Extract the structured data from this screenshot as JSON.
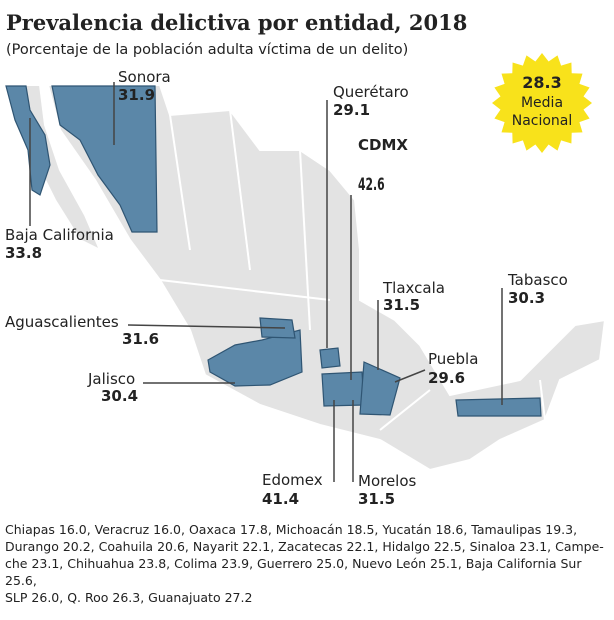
{
  "header": {
    "title": "Prevalencia delictiva por entidad, 2018",
    "subtitle": "(Porcentaje de la población adulta víctima de un delito)"
  },
  "national": {
    "value": 28.3,
    "label_1": "Media",
    "label_2": "Nacional"
  },
  "callouts": [
    {
      "name": "Sonora",
      "value": 31.9
    },
    {
      "name": "Querétaro",
      "value": 29.1
    },
    {
      "name": "CDMX",
      "value": 42.6
    },
    {
      "name": "Baja California",
      "value": 33.8
    },
    {
      "name": "Tlaxcala",
      "value": 31.5
    },
    {
      "name": "Tabasco",
      "value": 30.3
    },
    {
      "name": "Aguascalientes",
      "value": 31.6
    },
    {
      "name": "Jalisco",
      "value": 30.4
    },
    {
      "name": "Puebla",
      "value": 29.6
    },
    {
      "name": "Edomex",
      "value": 41.4
    },
    {
      "name": "Morelos",
      "value": 31.5
    }
  ],
  "footnote": [
    "Chiapas 16.0, Veracruz 16.0, Oaxaca 17.8, Michoacán 18.5, Yucatán 18.6, Tamaulipas 19.3,",
    "Durango 20.2, Coahuila 20.6, Nayarit 22.1, Zacatecas 22.1, Hidalgo 22.5, Sinaloa 23.1, Campe-",
    "che 23.1, Chihuahua 23.8, Colima 23.9, Guerrero 25.0, Nuevo León 25.1, Baja California Sur",
    "25.6,",
    "SLP 26.0, Q. Roo 26.3, Guanajuato 27.2"
  ]
}
